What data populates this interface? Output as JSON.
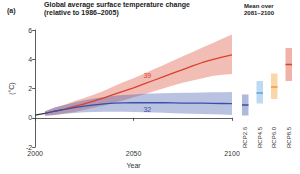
{
  "chart_data": [
    {
      "type": "line",
      "panel_label": "(a)",
      "title": "Global average surface temperature change",
      "subtitle": "(relative to 1986–2005)",
      "x_label": "Year",
      "y_label": "(°C)",
      "x": [
        2000,
        2005,
        2010,
        2015,
        2020,
        2025,
        2030,
        2035,
        2040,
        2045,
        2050,
        2055,
        2060,
        2065,
        2070,
        2075,
        2080,
        2085,
        2090,
        2095,
        2100
      ],
      "series": [
        {
          "color": "#333333",
          "values": [
            0.18,
            0.3,
            null,
            null,
            null,
            null,
            null,
            null,
            null,
            null,
            null,
            null,
            null,
            null,
            null,
            null,
            null,
            null,
            null,
            null,
            null
          ]
        },
        {
          "name": "RCP8.5",
          "color": "#d9412b",
          "values": [
            null,
            0.3,
            0.45,
            0.6,
            0.78,
            0.95,
            1.15,
            1.37,
            1.6,
            1.82,
            2.05,
            2.3,
            2.55,
            2.8,
            3.05,
            3.3,
            3.55,
            3.78,
            3.98,
            4.15,
            4.3
          ],
          "low": [
            null,
            0.15,
            0.2,
            0.3,
            0.4,
            0.55,
            0.7,
            0.85,
            1.05,
            1.2,
            1.4,
            1.6,
            1.8,
            2.0,
            2.2,
            2.4,
            2.55,
            2.7,
            2.85,
            2.95,
            3.0
          ],
          "high": [
            null,
            0.45,
            0.7,
            0.9,
            1.15,
            1.35,
            1.6,
            1.85,
            2.15,
            2.45,
            2.7,
            3.0,
            3.3,
            3.6,
            3.9,
            4.2,
            4.5,
            4.8,
            5.1,
            5.4,
            5.7
          ]
        },
        {
          "name": "RCP2.6",
          "color": "#3a4fa8",
          "values": [
            null,
            0.3,
            0.45,
            0.57,
            0.7,
            0.8,
            0.88,
            0.95,
            1.0,
            1.02,
            1.03,
            1.04,
            1.03,
            1.03,
            1.02,
            1.01,
            1.0,
            1.0,
            0.99,
            0.98,
            0.97
          ],
          "low": [
            null,
            0.15,
            0.2,
            0.28,
            0.33,
            0.38,
            0.4,
            0.42,
            0.42,
            0.42,
            0.4,
            0.38,
            0.36,
            0.34,
            0.32,
            0.3,
            0.28,
            0.26,
            0.24,
            0.22,
            0.2
          ],
          "high": [
            null,
            0.45,
            0.7,
            0.88,
            1.05,
            1.2,
            1.32,
            1.42,
            1.5,
            1.56,
            1.6,
            1.64,
            1.66,
            1.68,
            1.7,
            1.71,
            1.72,
            1.73,
            1.74,
            1.75,
            1.76
          ]
        }
      ],
      "annotations": [
        {
          "text": "39",
          "x": 2057,
          "y": 2.9,
          "color": "#d9412b"
        },
        {
          "text": "32",
          "x": 2057,
          "y": 0.55,
          "color": "#3a4fa8"
        }
      ],
      "xlim": [
        2000,
        2100
      ],
      "xticks": [
        2000,
        2050,
        2100
      ],
      "ylim": [
        -2,
        6
      ],
      "yticks": [
        -2,
        0,
        2,
        4,
        6
      ],
      "grid": false
    },
    {
      "type": "range",
      "title": "Mean over\n2081–2100",
      "categories": [
        "RCP2.6",
        "RCP4.5",
        "RCP6.0",
        "RCP8.5"
      ],
      "colors": [
        "#3a4fa8",
        "#5ba3e0",
        "#f29a2e",
        "#d9412b"
      ],
      "low": [
        0.3,
        1.1,
        1.4,
        2.6
      ],
      "values": [
        1.0,
        1.8,
        2.2,
        3.7
      ],
      "high": [
        1.7,
        2.6,
        3.1,
        4.8
      ],
      "ylim": [
        -2,
        6
      ],
      "tick_labels": "x"
    }
  ]
}
